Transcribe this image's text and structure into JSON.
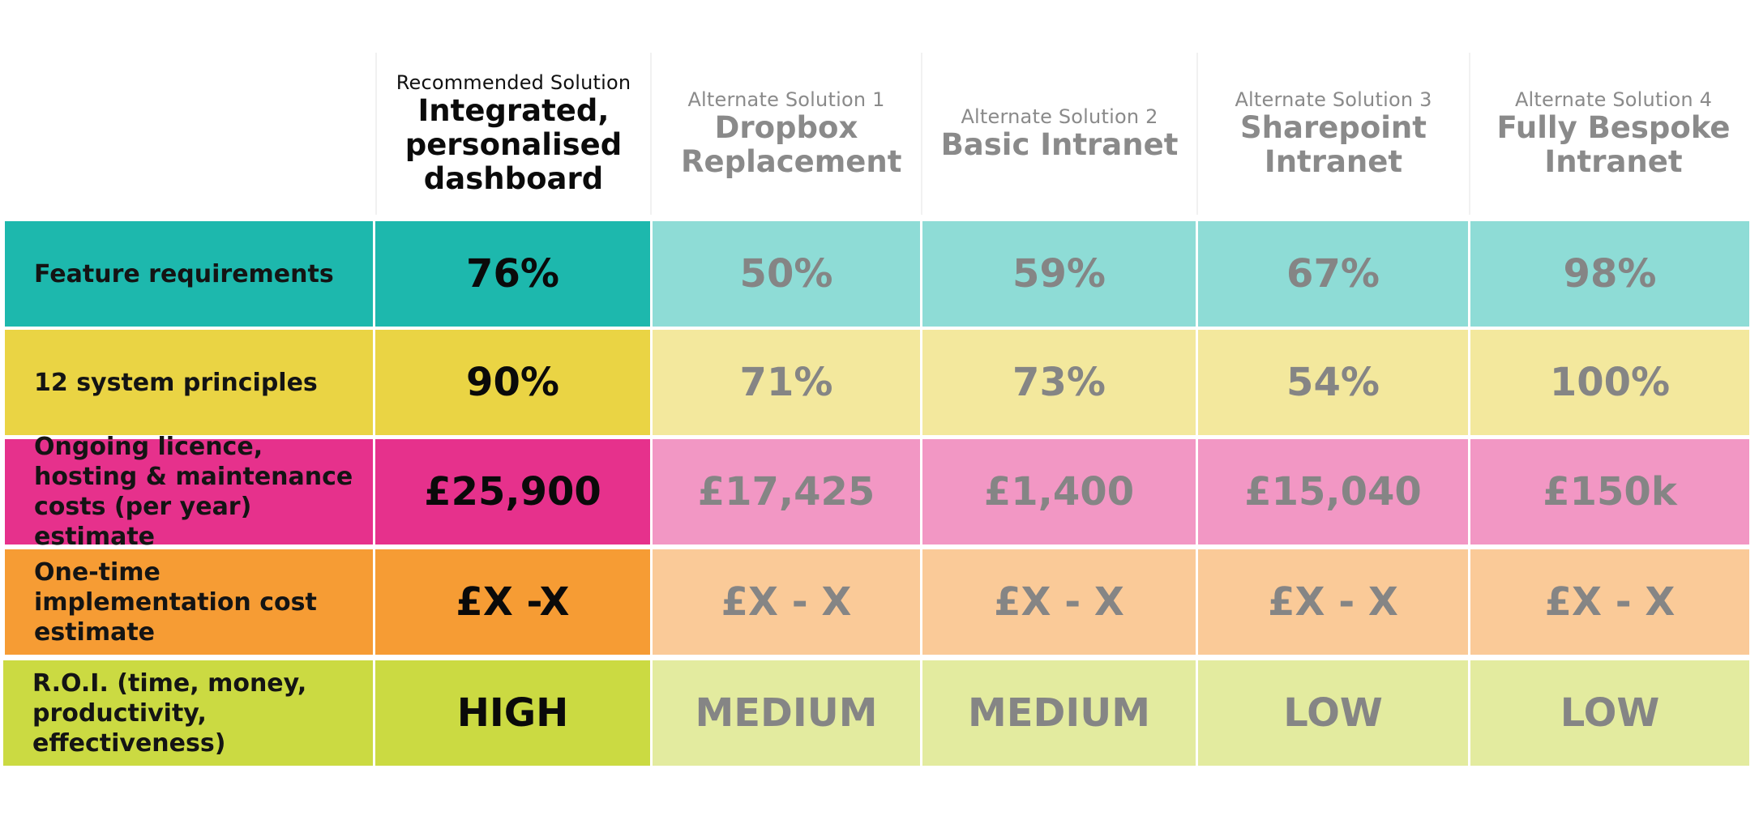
{
  "header": {
    "recommended": {
      "subtitle": "Recommended Solution",
      "title": "Integrated, personalised dashboard"
    },
    "alternates": [
      {
        "subtitle": "Alternate Solution 1",
        "title": "Dropbox Replacement"
      },
      {
        "subtitle": "Alternate Solution 2",
        "title": "Basic Intranet"
      },
      {
        "subtitle": "Alternate Solution 3",
        "title": "Sharepoint Intranet"
      },
      {
        "subtitle": "Alternate Solution 4",
        "title": "Fully Bespoke Intranet"
      }
    ]
  },
  "rows": [
    {
      "label": "Feature requirements",
      "recommended": "76%",
      "alternates": [
        "50%",
        "59%",
        "67%",
        "98%"
      ],
      "color": "#1db8ad",
      "light_color": "#8edcd6"
    },
    {
      "label": "12 system principles",
      "recommended": "90%",
      "alternates": [
        "71%",
        "73%",
        "54%",
        "100%"
      ],
      "color": "#ead444",
      "light_color": "#f3e89d"
    },
    {
      "label": "Ongoing licence, hosting & maintenance costs (per year) estimate",
      "recommended": "£25,900",
      "alternates": [
        "£17,425",
        "£1,400",
        "£15,040",
        "£150k"
      ],
      "color": "#e6318c",
      "light_color": "#f297c4"
    },
    {
      "label": "One-time implementation cost estimate",
      "recommended": "£X -X",
      "alternates": [
        "£X - X",
        "£X - X",
        "£X - X",
        "£X - X"
      ],
      "color": "#f69c34",
      "light_color": "#faca98"
    },
    {
      "label": "R.O.I. (time, money, productivity, effectiveness)",
      "recommended": "HIGH",
      "alternates": [
        "MEDIUM",
        "MEDIUM",
        "LOW",
        "LOW"
      ],
      "color": "#cbda42",
      "light_color": "#e3eb9f"
    }
  ]
}
